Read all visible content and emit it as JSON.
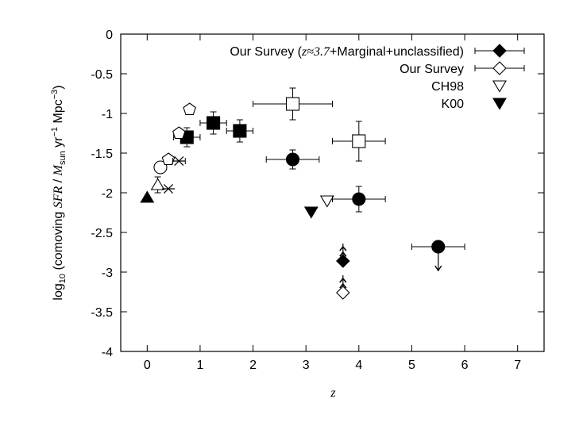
{
  "chart_data": {
    "type": "scatter",
    "title": "",
    "xlabel": "z",
    "ylabel": {
      "prefix": "log",
      "sub": "10",
      "part1": " (comoving ",
      "sfr": "SFR",
      "part2": " / ",
      "mass": "M",
      "mass_sub": "sun",
      "part3": " yr",
      "exp1": "−1",
      "part4": " Mpc",
      "exp2": "−3",
      "part5": ")"
    },
    "xlim": [
      -0.5,
      7.5
    ],
    "ylim": [
      -4,
      0
    ],
    "xticks": [
      "0",
      "1",
      "2",
      "3",
      "4",
      "5",
      "6",
      "7"
    ],
    "yticks": [
      "0",
      "-0.5",
      "-1",
      "-1.5",
      "-2",
      "-2.5",
      "-3",
      "-3.5",
      "-4"
    ],
    "grid": false,
    "legend_position": "top-right",
    "legend": [
      {
        "marker": "diamond-filled",
        "parts": [
          {
            "t": "Our Survey (",
            "s": "n"
          },
          {
            "t": "z≈3.7",
            "s": "i"
          },
          {
            "t": "+Marginal+unclassified)",
            "s": "n"
          }
        ]
      },
      {
        "marker": "diamond-open",
        "parts": [
          {
            "t": "Our Survey",
            "s": "n"
          }
        ]
      },
      {
        "marker": "triangle-down-open",
        "parts": [
          {
            "t": "CH98",
            "s": "n"
          }
        ]
      },
      {
        "marker": "triangle-down-filled",
        "parts": [
          {
            "t": "K00",
            "s": "n"
          }
        ]
      }
    ],
    "series": [
      {
        "name": "Our Survey (z≈3.7+Marginal+unclassified)",
        "marker": "diamond-filled",
        "points": [
          {
            "x": 3.7,
            "y": -2.86,
            "lower_limit": true
          }
        ]
      },
      {
        "name": "Our Survey",
        "marker": "diamond-open",
        "points": [
          {
            "x": 3.7,
            "y": -3.26,
            "lower_limit": true
          }
        ]
      },
      {
        "name": "CH98",
        "marker": "triangle-down-open",
        "points": [
          {
            "x": 3.4,
            "y": -2.1
          }
        ]
      },
      {
        "name": "K00",
        "marker": "triangle-down-filled",
        "points": [
          {
            "x": 3.1,
            "y": -2.24
          }
        ]
      },
      {
        "marker": "square-filled",
        "points": [
          {
            "x": 0.75,
            "y": -1.3,
            "xerr": 0.25,
            "yerr": 0.12
          },
          {
            "x": 1.25,
            "y": -1.12,
            "xerr": 0.25,
            "yerr": 0.14
          },
          {
            "x": 1.75,
            "y": -1.22,
            "xerr": 0.25,
            "yerr": 0.14
          }
        ]
      },
      {
        "marker": "square-open",
        "points": [
          {
            "x": 2.75,
            "y": -0.88,
            "xerr": 0.75,
            "yerr": 0.2
          },
          {
            "x": 4.0,
            "y": -1.35,
            "xerr": 0.5,
            "yerr": 0.25
          }
        ]
      },
      {
        "marker": "circle-filled",
        "points": [
          {
            "x": 2.75,
            "y": -1.58,
            "xerr": 0.5,
            "yerr": 0.12
          },
          {
            "x": 4.0,
            "y": -2.08,
            "xerr": 0.5,
            "yerr": 0.16
          },
          {
            "x": 5.5,
            "y": -2.68,
            "xerr": 0.5,
            "yerr": 0,
            "upper_limit": true
          }
        ]
      },
      {
        "marker": "triangle-up-filled",
        "points": [
          {
            "x": 0.0,
            "y": -2.06
          }
        ]
      },
      {
        "marker": "triangle-up-open",
        "points": [
          {
            "x": 0.2,
            "y": -1.9,
            "yerr": 0.1
          }
        ]
      },
      {
        "marker": "circle-open",
        "points": [
          {
            "x": 0.25,
            "y": -1.68
          }
        ]
      },
      {
        "marker": "pentagon-open",
        "points": [
          {
            "x": 0.4,
            "y": -1.58
          },
          {
            "x": 0.6,
            "y": -1.25
          },
          {
            "x": 0.8,
            "y": -0.95
          }
        ]
      },
      {
        "marker": "asterisk",
        "points": [
          {
            "x": 0.4,
            "y": -1.95
          },
          {
            "x": 0.6,
            "y": -1.6,
            "xerr": 0.12
          }
        ]
      }
    ]
  }
}
